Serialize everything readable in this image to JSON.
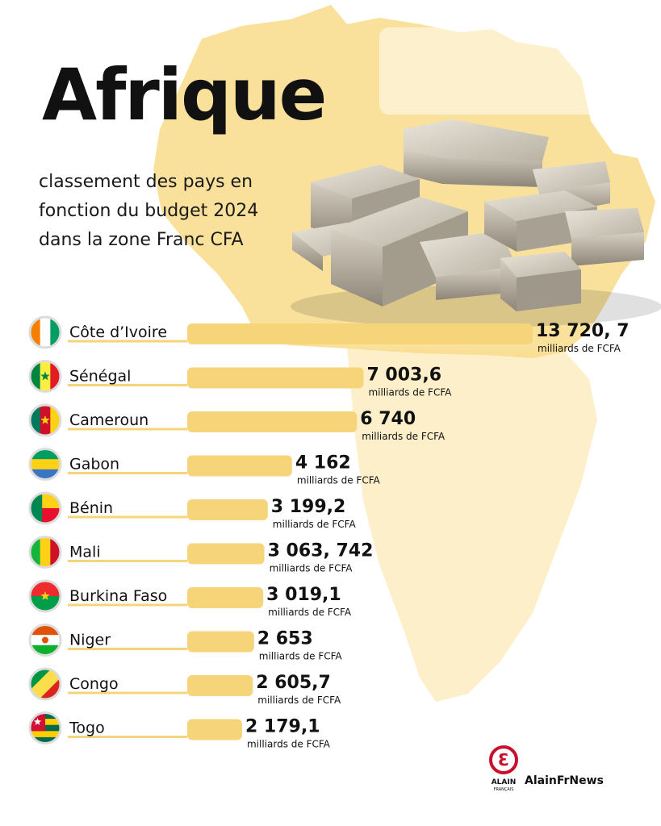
{
  "title": "Afrique",
  "subtitle": [
    "classement des pays en",
    "fonction du budget 2024",
    "dans la zone Franc CFA"
  ],
  "brand": {
    "name": "AlainFrNews",
    "logo_text": "ALAIN",
    "logo_subtext": "FRANÇAIS",
    "logo_glyph": "Ɛ",
    "color": "#c8102e"
  },
  "colors": {
    "bar": "#f6d47a",
    "map": "#f8dc8a",
    "text": "#111111"
  },
  "chart_data": {
    "type": "bar",
    "orientation": "horizontal",
    "title": "classement des pays en fonction du budget 2024 dans la zone Franc CFA",
    "unit": "milliards de FCFA",
    "categories": [
      "Côte d’Ivoire",
      "Sénégal",
      "Cameroun",
      "Gabon",
      "Bénin",
      "Mali",
      "Burkina Faso",
      "Niger",
      "Congo",
      "Togo"
    ],
    "values": [
      13720.7,
      7003.6,
      6740,
      4162,
      3199.2,
      3063.742,
      3019.1,
      2653,
      2605.7,
      2179.1
    ],
    "value_labels": [
      "13 720, 7",
      "7 003,6",
      "6 740",
      "4 162",
      "3 199,2",
      "3 063, 742",
      "3 019,1",
      "2 653",
      "2 605,7",
      "2 179,1"
    ],
    "flags": [
      "flag-cote-divoire-icon",
      "flag-senegal-icon",
      "flag-cameroun-icon",
      "flag-gabon-icon",
      "flag-benin-icon",
      "flag-mali-icon",
      "flag-burkina-faso-icon",
      "flag-niger-icon",
      "flag-congo-icon",
      "flag-togo-icon"
    ]
  }
}
